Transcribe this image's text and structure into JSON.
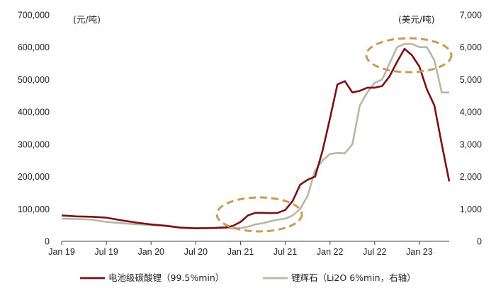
{
  "chart_data": {
    "type": "line",
    "left_unit": "(元/吨)",
    "right_unit": "(美元/吨)",
    "x_ticks": [
      "Jan 19",
      "Jul 19",
      "Jan 20",
      "Jul 20",
      "Jan 21",
      "Jul 21",
      "Jan 22",
      "Jul 22",
      "Jan 23"
    ],
    "y_left_ticks": [
      "0",
      "100,000",
      "200,000",
      "300,000",
      "400,000",
      "500,000",
      "600,000",
      "700,000"
    ],
    "y_right_ticks": [
      "0",
      "1,000",
      "2,000",
      "3,000",
      "4,000",
      "5,000",
      "6,000",
      "7,000"
    ],
    "y_left_range": [
      0,
      700000
    ],
    "y_right_range": [
      0,
      7000
    ],
    "x_range": [
      "2019-01",
      "2023-05"
    ],
    "grid": false,
    "legend_position": "bottom",
    "series": [
      {
        "name": "电池级碳酸锂（99.5%min）",
        "axis": "left",
        "color": "#7B1113",
        "x": [
          "2019-01",
          "2019-03",
          "2019-05",
          "2019-07",
          "2019-09",
          "2019-11",
          "2020-01",
          "2020-03",
          "2020-05",
          "2020-07",
          "2020-09",
          "2020-11",
          "2020-12",
          "2021-01",
          "2021-02",
          "2021-03",
          "2021-04",
          "2021-05",
          "2021-06",
          "2021-07",
          "2021-08",
          "2021-09",
          "2021-10",
          "2021-11",
          "2021-12",
          "2022-01",
          "2022-02",
          "2022-03",
          "2022-04",
          "2022-05",
          "2022-06",
          "2022-07",
          "2022-08",
          "2022-09",
          "2022-10",
          "2022-11",
          "2022-12",
          "2023-01",
          "2023-02",
          "2023-03",
          "2023-04",
          "2023-05"
        ],
        "values": [
          80000,
          77000,
          76000,
          73000,
          65000,
          58000,
          52000,
          48000,
          42000,
          40000,
          41000,
          43000,
          48000,
          60000,
          80000,
          88000,
          88000,
          87000,
          88000,
          97000,
          125000,
          175000,
          190000,
          200000,
          280000,
          380000,
          485000,
          495000,
          460000,
          465000,
          475000,
          475000,
          480000,
          510000,
          555000,
          595000,
          575000,
          540000,
          470000,
          420000,
          300000,
          185000
        ]
      },
      {
        "name": "锂辉石（Li2O 6%min，右轴）",
        "axis": "right",
        "color": "#B5B8A8",
        "x": [
          "2019-01",
          "2019-03",
          "2019-05",
          "2019-07",
          "2019-09",
          "2019-11",
          "2020-01",
          "2020-03",
          "2020-05",
          "2020-07",
          "2020-09",
          "2020-11",
          "2020-12",
          "2021-01",
          "2021-02",
          "2021-03",
          "2021-04",
          "2021-05",
          "2021-06",
          "2021-07",
          "2021-08",
          "2021-09",
          "2021-10",
          "2021-11",
          "2021-12",
          "2022-01",
          "2022-02",
          "2022-03",
          "2022-04",
          "2022-05",
          "2022-06",
          "2022-07",
          "2022-08",
          "2022-09",
          "2022-10",
          "2022-11",
          "2022-12",
          "2023-01",
          "2023-02",
          "2023-03",
          "2023-04",
          "2023-05"
        ],
        "values": [
          700,
          690,
          670,
          600,
          560,
          530,
          500,
          480,
          430,
          410,
          410,
          400,
          400,
          410,
          450,
          520,
          560,
          620,
          670,
          700,
          800,
          1000,
          1400,
          2200,
          2500,
          2700,
          2730,
          2720,
          3000,
          4200,
          4600,
          4900,
          5000,
          5500,
          6000,
          6100,
          6100,
          6000,
          6000,
          5600,
          4600,
          4600
        ]
      }
    ]
  }
}
